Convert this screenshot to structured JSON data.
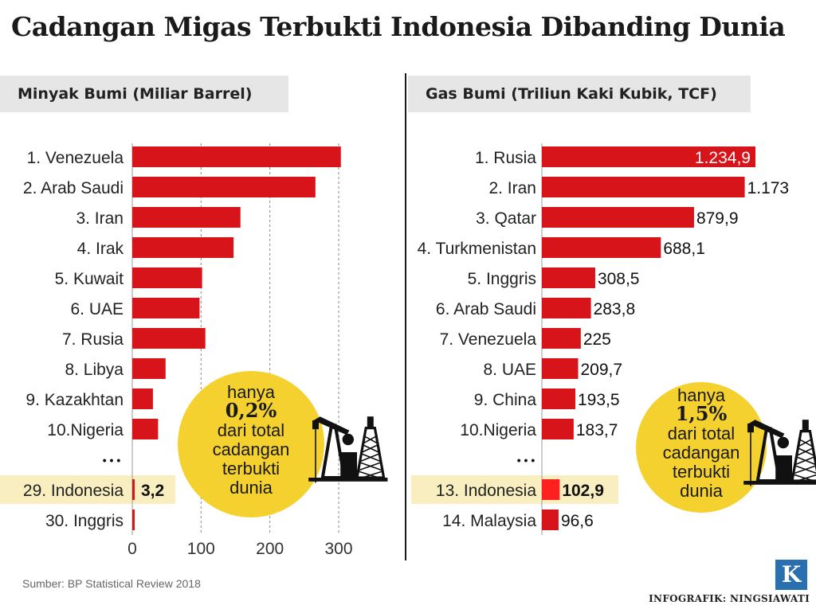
{
  "title": "Cadangan Migas Terbukti Indonesia Dibanding Dunia",
  "source": "Sumber: BP Statistical Review 2018",
  "credit": "INFOGRAFIK: NINGSIAWATI",
  "logo_letter": "K",
  "colors": {
    "bar": "#d7141a",
    "highlight_band": "#f9eec0",
    "bubble": "#f5d130",
    "header_bg": "#e6e6e6"
  },
  "ellipsis": "• • •",
  "chart_data": [
    {
      "type": "bar",
      "title": "Minyak Bumi (Miliar Barrel)",
      "categories": [
        "1. Venezuela",
        "2. Arab Saudi",
        "3. Iran",
        "4. Irak",
        "5. Kuwait",
        "6. UAE",
        "7. Rusia",
        "8. Libya",
        "9. Kazakhtan",
        "10.Nigeria",
        "29. Indonesia",
        "30. Inggris"
      ],
      "values": [
        303.2,
        266.2,
        157.2,
        147.2,
        101.5,
        97.8,
        106.2,
        48.4,
        30.0,
        37.5,
        3.2,
        2.5
      ],
      "data_labels": [
        null,
        null,
        null,
        null,
        null,
        null,
        null,
        null,
        null,
        null,
        "3,2",
        null
      ],
      "highlight": "29. Indonesia",
      "xlim": [
        0,
        300
      ],
      "x_ticks": [
        0,
        100,
        200,
        300
      ],
      "grid": true,
      "callout": {
        "line1": "hanya",
        "value": "0,2%",
        "line3": "dari total",
        "line4": "cadangan",
        "line5": "terbukti",
        "line6": "dunia"
      }
    },
    {
      "type": "bar",
      "title": "Gas Bumi (Triliun Kaki Kubik, TCF)",
      "categories": [
        "1. Rusia",
        "2. Iran",
        "3. Qatar",
        "4. Turkmenistan",
        "5. Inggris",
        "6. Arab Saudi",
        "7. Venezuela",
        "8. UAE",
        "9. China",
        "10.Nigeria",
        "13. Indonesia",
        "14. Malaysia"
      ],
      "values": [
        1234.9,
        1173,
        879.9,
        688.1,
        308.5,
        283.8,
        225,
        209.7,
        193.5,
        183.7,
        102.9,
        96.6
      ],
      "data_labels": [
        "1.234,9",
        "1.173",
        "879,9",
        "688,1",
        "308,5",
        "283,8",
        "225",
        "209,7",
        "193,5",
        "183,7",
        "102,9",
        "96,6"
      ],
      "highlight": "13. Indonesia",
      "callout": {
        "line1": "hanya",
        "value": "1,5%",
        "line3": "dari total",
        "line4": "cadangan",
        "line5": "terbukti",
        "line6": "dunia"
      }
    }
  ]
}
